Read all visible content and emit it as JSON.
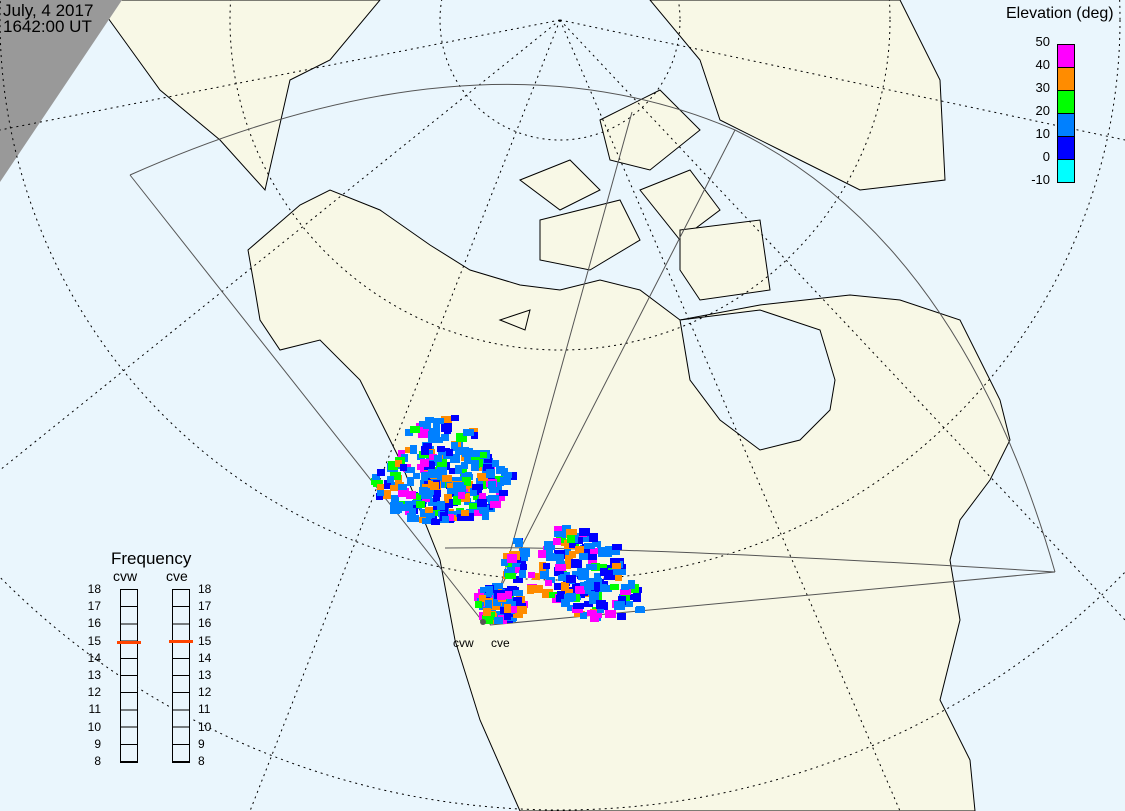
{
  "header": {
    "date": "July, 4 2017",
    "time": "1642:00 UT"
  },
  "elevation_legend": {
    "title": "Elevation (deg)",
    "ticks": [
      "50",
      "40",
      "30",
      "20",
      "10",
      "0",
      "-10"
    ],
    "colors": [
      "#ff00ff",
      "#ff8c00",
      "#00ff00",
      "#0080ff",
      "#0000ff",
      "#00ffff"
    ]
  },
  "frequency": {
    "title": "Frequency",
    "radars": [
      {
        "name": "cvw",
        "value_mhz": 14.9
      },
      {
        "name": "cve",
        "value_mhz": 15.0
      }
    ],
    "ticks": [
      "18",
      "17",
      "16",
      "15",
      "14",
      "13",
      "12",
      "11",
      "10",
      "9",
      "8"
    ],
    "marker_color": "#ff4400"
  },
  "radar_labels": [
    "cvw",
    "cve"
  ],
  "colors": {
    "ocean": "#eaf6fd",
    "land": "#f8f8e6",
    "night": "#999999"
  }
}
